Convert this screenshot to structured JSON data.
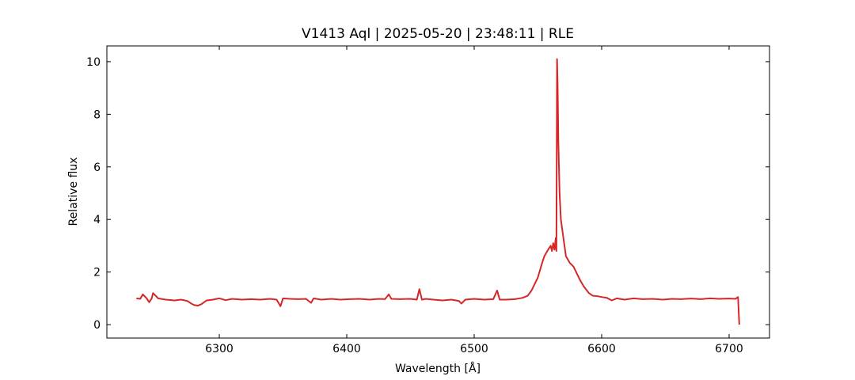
{
  "chart_data": {
    "type": "line",
    "title": "V1413 Aql | 2025-05-20 | 23:48:11 | RLE",
    "x_label": "Wavelength [Å]",
    "y_label": "Relative flux",
    "xlim": [
      6211.8,
      6731.7
    ],
    "ylim": [
      -0.51,
      10.6
    ],
    "xticks": [
      6300,
      6400,
      6500,
      6600,
      6700
    ],
    "yticks": [
      0,
      2,
      4,
      6,
      8,
      10
    ],
    "grid": false,
    "series": [
      {
        "name": "flux",
        "color": "#d62728",
        "x": [
          6235,
          6238,
          6240,
          6243,
          6245,
          6247,
          6248,
          6252,
          6258,
          6265,
          6270,
          6275,
          6278,
          6280,
          6283,
          6286,
          6290,
          6295,
          6300,
          6305,
          6310,
          6318,
          6325,
          6332,
          6340,
          6345,
          6348,
          6350,
          6355,
          6362,
          6368,
          6372,
          6374,
          6380,
          6388,
          6395,
          6402,
          6410,
          6418,
          6425,
          6430,
          6433,
          6435,
          6442,
          6450,
          6455,
          6457,
          6459,
          6462,
          6468,
          6475,
          6482,
          6488,
          6490,
          6493,
          6500,
          6508,
          6515,
          6518,
          6520,
          6525,
          6532,
          6538,
          6542,
          6545,
          6548,
          6550,
          6553,
          6555,
          6558,
          6560,
          6561,
          6562,
          6563,
          6564,
          6564.5,
          6565,
          6565.5,
          6566,
          6567,
          6568,
          6570,
          6572,
          6575,
          6578,
          6580,
          6583,
          6586,
          6590,
          6593,
          6597,
          6600,
          6604,
          6608,
          6612,
          6618,
          6625,
          6632,
          6640,
          6648,
          6655,
          6662,
          6670,
          6678,
          6685,
          6692,
          6700,
          6705,
          6707,
          6708
        ],
        "values": [
          1.0,
          0.98,
          1.15,
          1.0,
          0.85,
          1.0,
          1.2,
          1.0,
          0.95,
          0.92,
          0.95,
          0.9,
          0.8,
          0.75,
          0.72,
          0.78,
          0.92,
          0.95,
          1.0,
          0.93,
          0.98,
          0.95,
          0.97,
          0.95,
          0.98,
          0.95,
          0.7,
          1.0,
          0.98,
          0.97,
          0.98,
          0.83,
          1.0,
          0.95,
          0.98,
          0.95,
          0.97,
          0.98,
          0.95,
          0.98,
          0.97,
          1.15,
          0.98,
          0.97,
          0.98,
          0.95,
          1.35,
          0.95,
          0.98,
          0.95,
          0.92,
          0.95,
          0.9,
          0.8,
          0.95,
          0.98,
          0.95,
          0.97,
          1.3,
          0.95,
          0.95,
          0.97,
          1.02,
          1.1,
          1.3,
          1.6,
          1.8,
          2.3,
          2.6,
          2.85,
          3.0,
          2.8,
          3.1,
          2.85,
          3.3,
          2.8,
          10.1,
          9.0,
          7.0,
          5.0,
          4.0,
          3.3,
          2.6,
          2.35,
          2.2,
          2.0,
          1.7,
          1.45,
          1.2,
          1.1,
          1.08,
          1.05,
          1.02,
          0.92,
          1.0,
          0.95,
          1.0,
          0.97,
          0.98,
          0.95,
          0.98,
          0.97,
          0.99,
          0.97,
          1.0,
          0.98,
          0.99,
          0.98,
          1.05,
          0.0
        ]
      }
    ]
  }
}
